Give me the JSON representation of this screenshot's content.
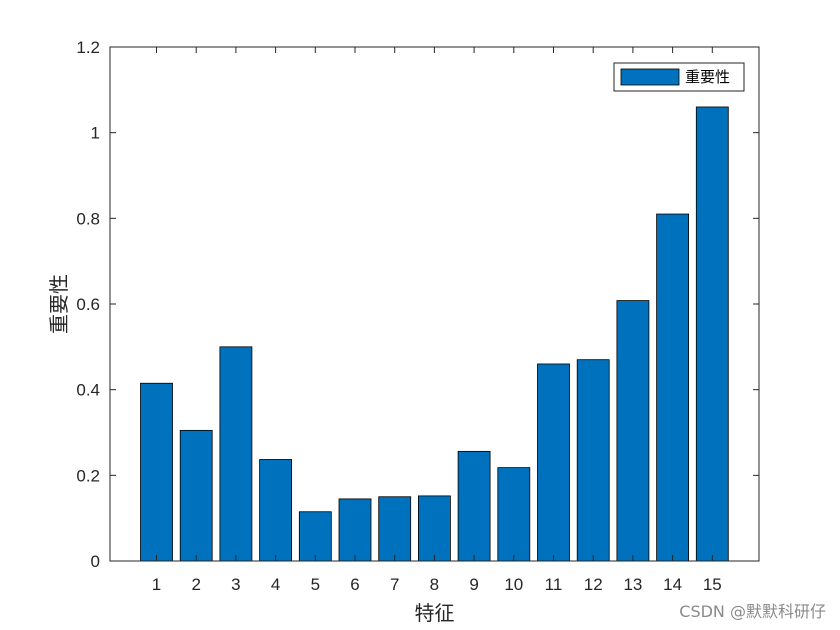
{
  "chart_data": {
    "type": "bar",
    "categories": [
      "1",
      "2",
      "3",
      "4",
      "5",
      "6",
      "7",
      "8",
      "9",
      "10",
      "11",
      "12",
      "13",
      "14",
      "15"
    ],
    "series": [
      {
        "name": "重要性",
        "values": [
          0.415,
          0.305,
          0.5,
          0.237,
          0.115,
          0.145,
          0.15,
          0.152,
          0.256,
          0.218,
          0.46,
          0.47,
          0.608,
          0.81,
          1.06
        ]
      }
    ],
    "xlabel": "特征",
    "ylabel": "重要性",
    "ylim": [
      0,
      1.2
    ],
    "yticks": [
      "0",
      "0.2",
      "0.4",
      "0.6",
      "0.8",
      "1",
      "1.2"
    ],
    "legend": "top-right",
    "grid": false,
    "colors": {
      "bar": "#0072BD",
      "bar_edge": "#000000",
      "axis": "#262626"
    }
  },
  "watermark": "CSDN @默默科研仔"
}
